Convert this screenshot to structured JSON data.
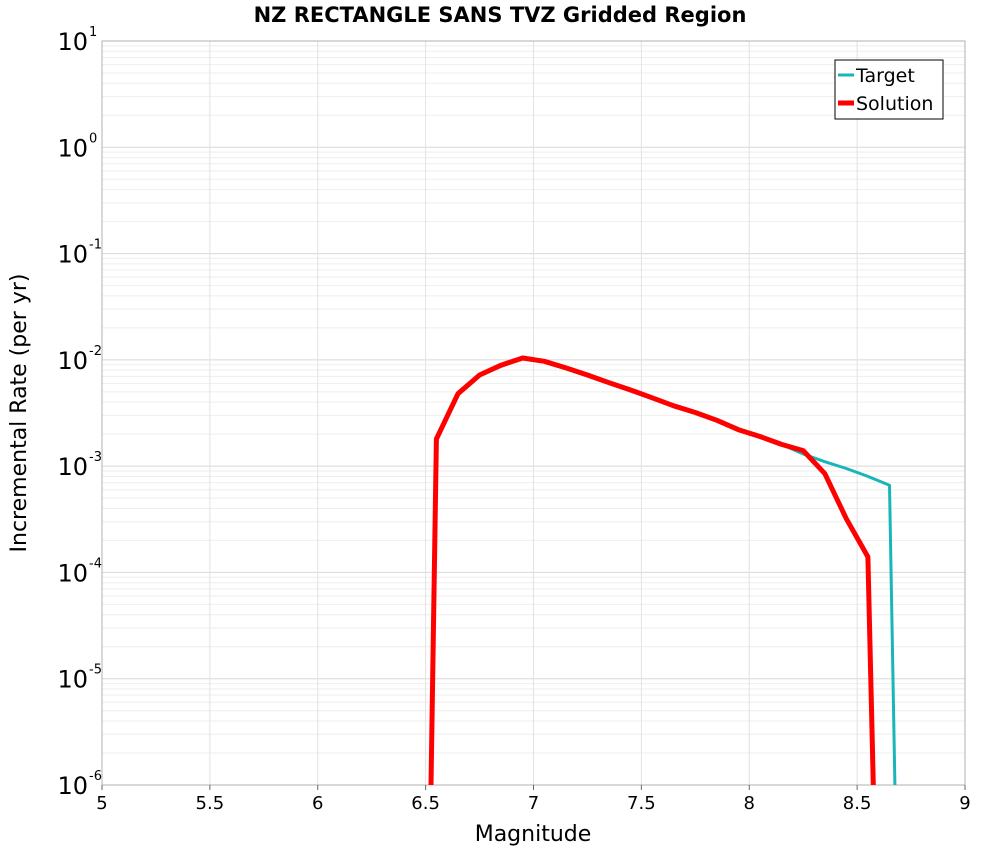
{
  "chart_data": {
    "type": "line",
    "title": "NZ RECTANGLE SANS TVZ Gridded Region",
    "xlabel": "Magnitude",
    "ylabel": "Incremental Rate (per yr)",
    "xlim": [
      5,
      9
    ],
    "ylim": [
      1e-06,
      10
    ],
    "yscale": "log",
    "grid": true,
    "legend_position": "top-right",
    "xticks": [
      "5",
      "5.5",
      "6",
      "6.5",
      "7",
      "7.5",
      "8",
      "8.5",
      "9"
    ],
    "yticks": [
      {
        "base": "10",
        "exp": "1"
      },
      {
        "base": "10",
        "exp": "0"
      },
      {
        "base": "10",
        "exp": "-1"
      },
      {
        "base": "10",
        "exp": "-2"
      },
      {
        "base": "10",
        "exp": "-3"
      },
      {
        "base": "10",
        "exp": "-4"
      },
      {
        "base": "10",
        "exp": "-5"
      },
      {
        "base": "10",
        "exp": "-6"
      }
    ],
    "series": [
      {
        "name": "Target",
        "color": "#1ab5b8",
        "x": [
          6.525,
          6.55,
          6.65,
          6.75,
          6.85,
          6.95,
          7.05,
          7.15,
          7.25,
          7.35,
          7.45,
          7.55,
          7.65,
          7.75,
          7.85,
          7.95,
          8.05,
          8.15,
          8.25,
          8.35,
          8.45,
          8.55,
          8.65,
          8.675
        ],
        "y": [
          1e-06,
          0.0018,
          0.0048,
          0.0072,
          0.0089,
          0.0104,
          0.0097,
          0.0084,
          0.0072,
          0.0061,
          0.0052,
          0.0044,
          0.0037,
          0.0032,
          0.0027,
          0.0022,
          0.0019,
          0.0016,
          0.0013,
          0.0011,
          0.00095,
          0.0008,
          0.00066,
          1e-06
        ]
      },
      {
        "name": "Solution",
        "color": "#ff0000",
        "x": [
          6.525,
          6.55,
          6.65,
          6.75,
          6.85,
          6.95,
          7.05,
          7.15,
          7.25,
          7.35,
          7.45,
          7.55,
          7.65,
          7.75,
          7.85,
          7.95,
          8.05,
          8.15,
          8.25,
          8.35,
          8.45,
          8.55,
          8.575
        ],
        "y": [
          1e-06,
          0.0018,
          0.0048,
          0.0072,
          0.0089,
          0.0104,
          0.0097,
          0.0084,
          0.0072,
          0.0061,
          0.0052,
          0.0044,
          0.0037,
          0.0032,
          0.0027,
          0.0022,
          0.0019,
          0.0016,
          0.0014,
          0.00085,
          0.00032,
          0.00014,
          1e-06
        ]
      }
    ]
  }
}
